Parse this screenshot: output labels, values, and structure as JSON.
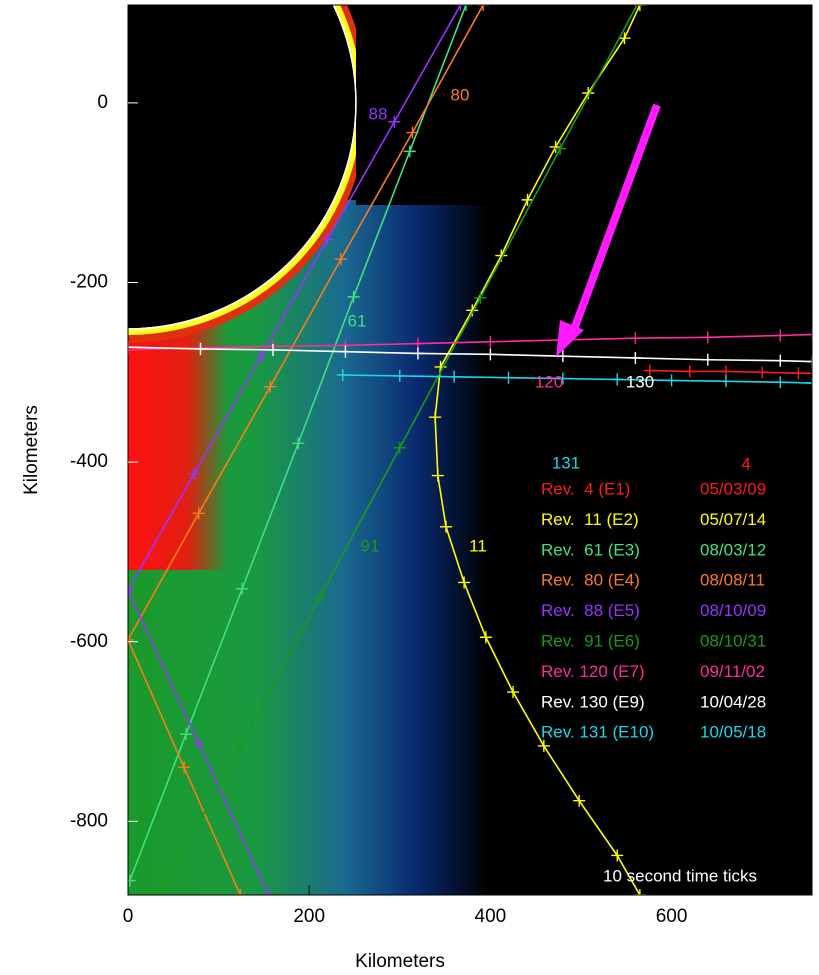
{
  "chart_data": {
    "type": "line",
    "xlabel": "Kilometers",
    "ylabel": "Kilometers",
    "annotation": "10 second time ticks",
    "xlim": [
      0,
      755
    ],
    "ylim": [
      -882,
      109
    ],
    "xticks": [
      0,
      200,
      400,
      600
    ],
    "yticks": [
      0,
      -200,
      -400,
      -600,
      -800
    ],
    "series": [
      {
        "name": "Rev.  4 (E1)",
        "date": "05/03/09",
        "label": "4",
        "color": "#ff1a1a",
        "x": [
          576,
          620,
          660,
          700,
          740,
          755
        ],
        "y": [
          -298,
          -299,
          -299,
          -300,
          -301,
          -301
        ]
      },
      {
        "name": "Rev.  11 (E2)",
        "date": "05/07/14",
        "label": "11",
        "color": "#ffff00",
        "x": [
          565,
          548,
          508,
          472,
          441,
          412,
          380,
          345,
          339,
          342,
          351,
          371,
          395,
          425,
          459,
          498,
          540,
          565
        ],
        "y": [
          109,
          72,
          11,
          -49,
          -108,
          -170,
          -231,
          -294,
          -350,
          -415,
          -472,
          -534,
          -595,
          -656,
          -716,
          -777,
          -838,
          -882
        ]
      },
      {
        "name": "Rev.  61 (E3)",
        "date": "08/03/12",
        "label": "61",
        "color": "#40e080",
        "x": [
          2,
          64,
          126,
          188,
          249,
          311,
          373
        ],
        "y": [
          -866,
          -703,
          -541,
          -379,
          -216,
          -54,
          109
        ]
      },
      {
        "name": "Rev.  80 (E4)",
        "date": "08/08/11",
        "label": "80",
        "color": "#ff7a1a",
        "x": [
          124,
          62,
          0,
          78,
          157,
          235,
          314,
          392
        ],
        "y": [
          -882,
          -740,
          -598,
          -457,
          -316,
          -174,
          -33,
          109
        ]
      },
      {
        "name": "Rev.  88 (E5)",
        "date": "08/10/09",
        "label": "88",
        "color": "#9933ff",
        "x": [
          155,
          78,
          0,
          73,
          147,
          220,
          294,
          367
        ],
        "y": [
          -882,
          -713,
          -543,
          -413,
          -282,
          -152,
          -21,
          109
        ]
      },
      {
        "name": "Rev.  91 (E6)",
        "date": "08/10/31",
        "label": "91",
        "color": "#1a9a1a",
        "x": [
          35,
          124,
          212,
          300,
          389,
          477,
          565
        ],
        "y": [
          -882,
          -716,
          -550,
          -384,
          -217,
          -51,
          115
        ]
      },
      {
        "name": "Rev. 120 (E7)",
        "date": "09/11/02",
        "label": "120",
        "color": "#ff2d9a",
        "x": [
          0,
          80,
          160,
          240,
          320,
          400,
          480,
          560,
          640,
          720,
          755
        ],
        "y": [
          -275,
          -273,
          -271,
          -270,
          -268,
          -266,
          -264,
          -262,
          -261,
          -259,
          -258
        ]
      },
      {
        "name": "Rev. 130 (E9)",
        "date": "10/04/28",
        "label": "130",
        "color": "#ffffff",
        "x": [
          0,
          80,
          160,
          240,
          320,
          400,
          480,
          560,
          640,
          720,
          755
        ],
        "y": [
          -272,
          -274,
          -275,
          -277,
          -279,
          -280,
          -282,
          -284,
          -286,
          -287,
          -288
        ]
      },
      {
        "name": "Rev. 131 (E10)",
        "date": "10/05/18",
        "label": "131",
        "color": "#19d8e8",
        "x": [
          237,
          300,
          360,
          420,
          480,
          540,
          600,
          660,
          720,
          755
        ],
        "y": [
          -303,
          -304,
          -305,
          -306,
          -307,
          -308,
          -309,
          -310,
          -311,
          -312
        ]
      }
    ]
  }
}
